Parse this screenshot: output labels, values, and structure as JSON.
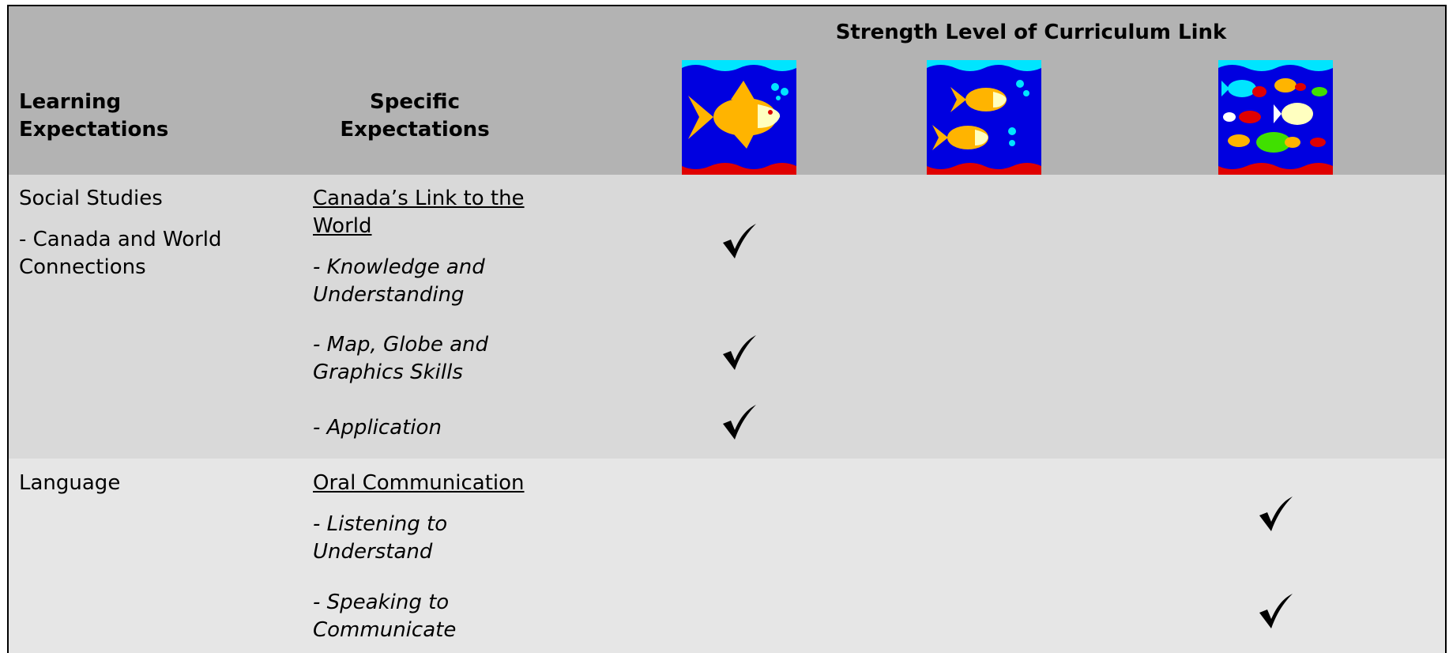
{
  "header": {
    "title": "Strength Level of Curriculum Link",
    "columns": [
      "Learning Expectations",
      "Specific Expectations"
    ]
  },
  "rows": [
    {
      "learning": [
        "Social Studies",
        "- Canada and World Connections"
      ],
      "strand": "Canada’s Link to the World",
      "items": [
        {
          "text": "- Knowledge and Understanding",
          "level": 1
        },
        {
          "text": "- Map, Globe and Graphics Skills",
          "level": 1
        },
        {
          "text": "- Application",
          "level": 1
        }
      ]
    },
    {
      "learning": [
        "Language"
      ],
      "strand": "Oral Communication",
      "items": [
        {
          "text": "- Listening to Understand",
          "level": 3
        },
        {
          "text": "- Speaking to Communicate",
          "level": 3
        }
      ]
    }
  ]
}
